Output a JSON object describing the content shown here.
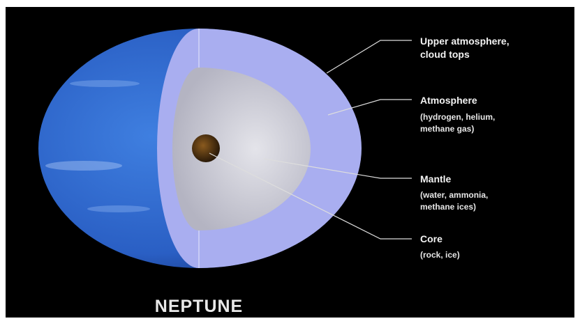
{
  "title": "NEPTUNE",
  "layers": [
    {
      "name_lines": [
        "Upper atmosphere,",
        "cloud tops"
      ]
    },
    {
      "name_lines": [
        "Atmosphere"
      ],
      "detail_lines": [
        "(hydrogen, helium,",
        "methane gas)"
      ]
    },
    {
      "name_lines": [
        "Mantle"
      ],
      "detail_lines": [
        "(water, ammonia,",
        "methane ices)"
      ]
    },
    {
      "name_lines": [
        "Core"
      ],
      "detail_lines": [
        "(rock, ice)"
      ]
    }
  ]
}
